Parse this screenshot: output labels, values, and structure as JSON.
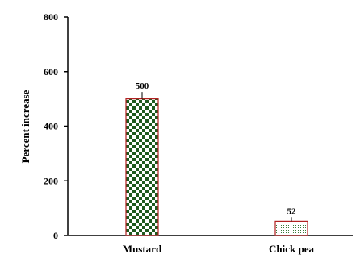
{
  "chart_data": {
    "type": "bar",
    "categories": [
      "Mustard",
      "Chick pea"
    ],
    "values": [
      500,
      52
    ],
    "data_labels": [
      "500",
      "52"
    ],
    "error": [
      25,
      15
    ],
    "title": "",
    "xlabel": "",
    "ylabel": "Percent increase",
    "ylim": [
      0,
      800
    ],
    "yticks": [
      0,
      200,
      400,
      600,
      800
    ],
    "grid": false,
    "legend": "none"
  },
  "colors": {
    "bar_outline": "#b01e1e",
    "mustard_fill": "#1f5a1f",
    "chickpea_fill": "#3a7a3a"
  }
}
